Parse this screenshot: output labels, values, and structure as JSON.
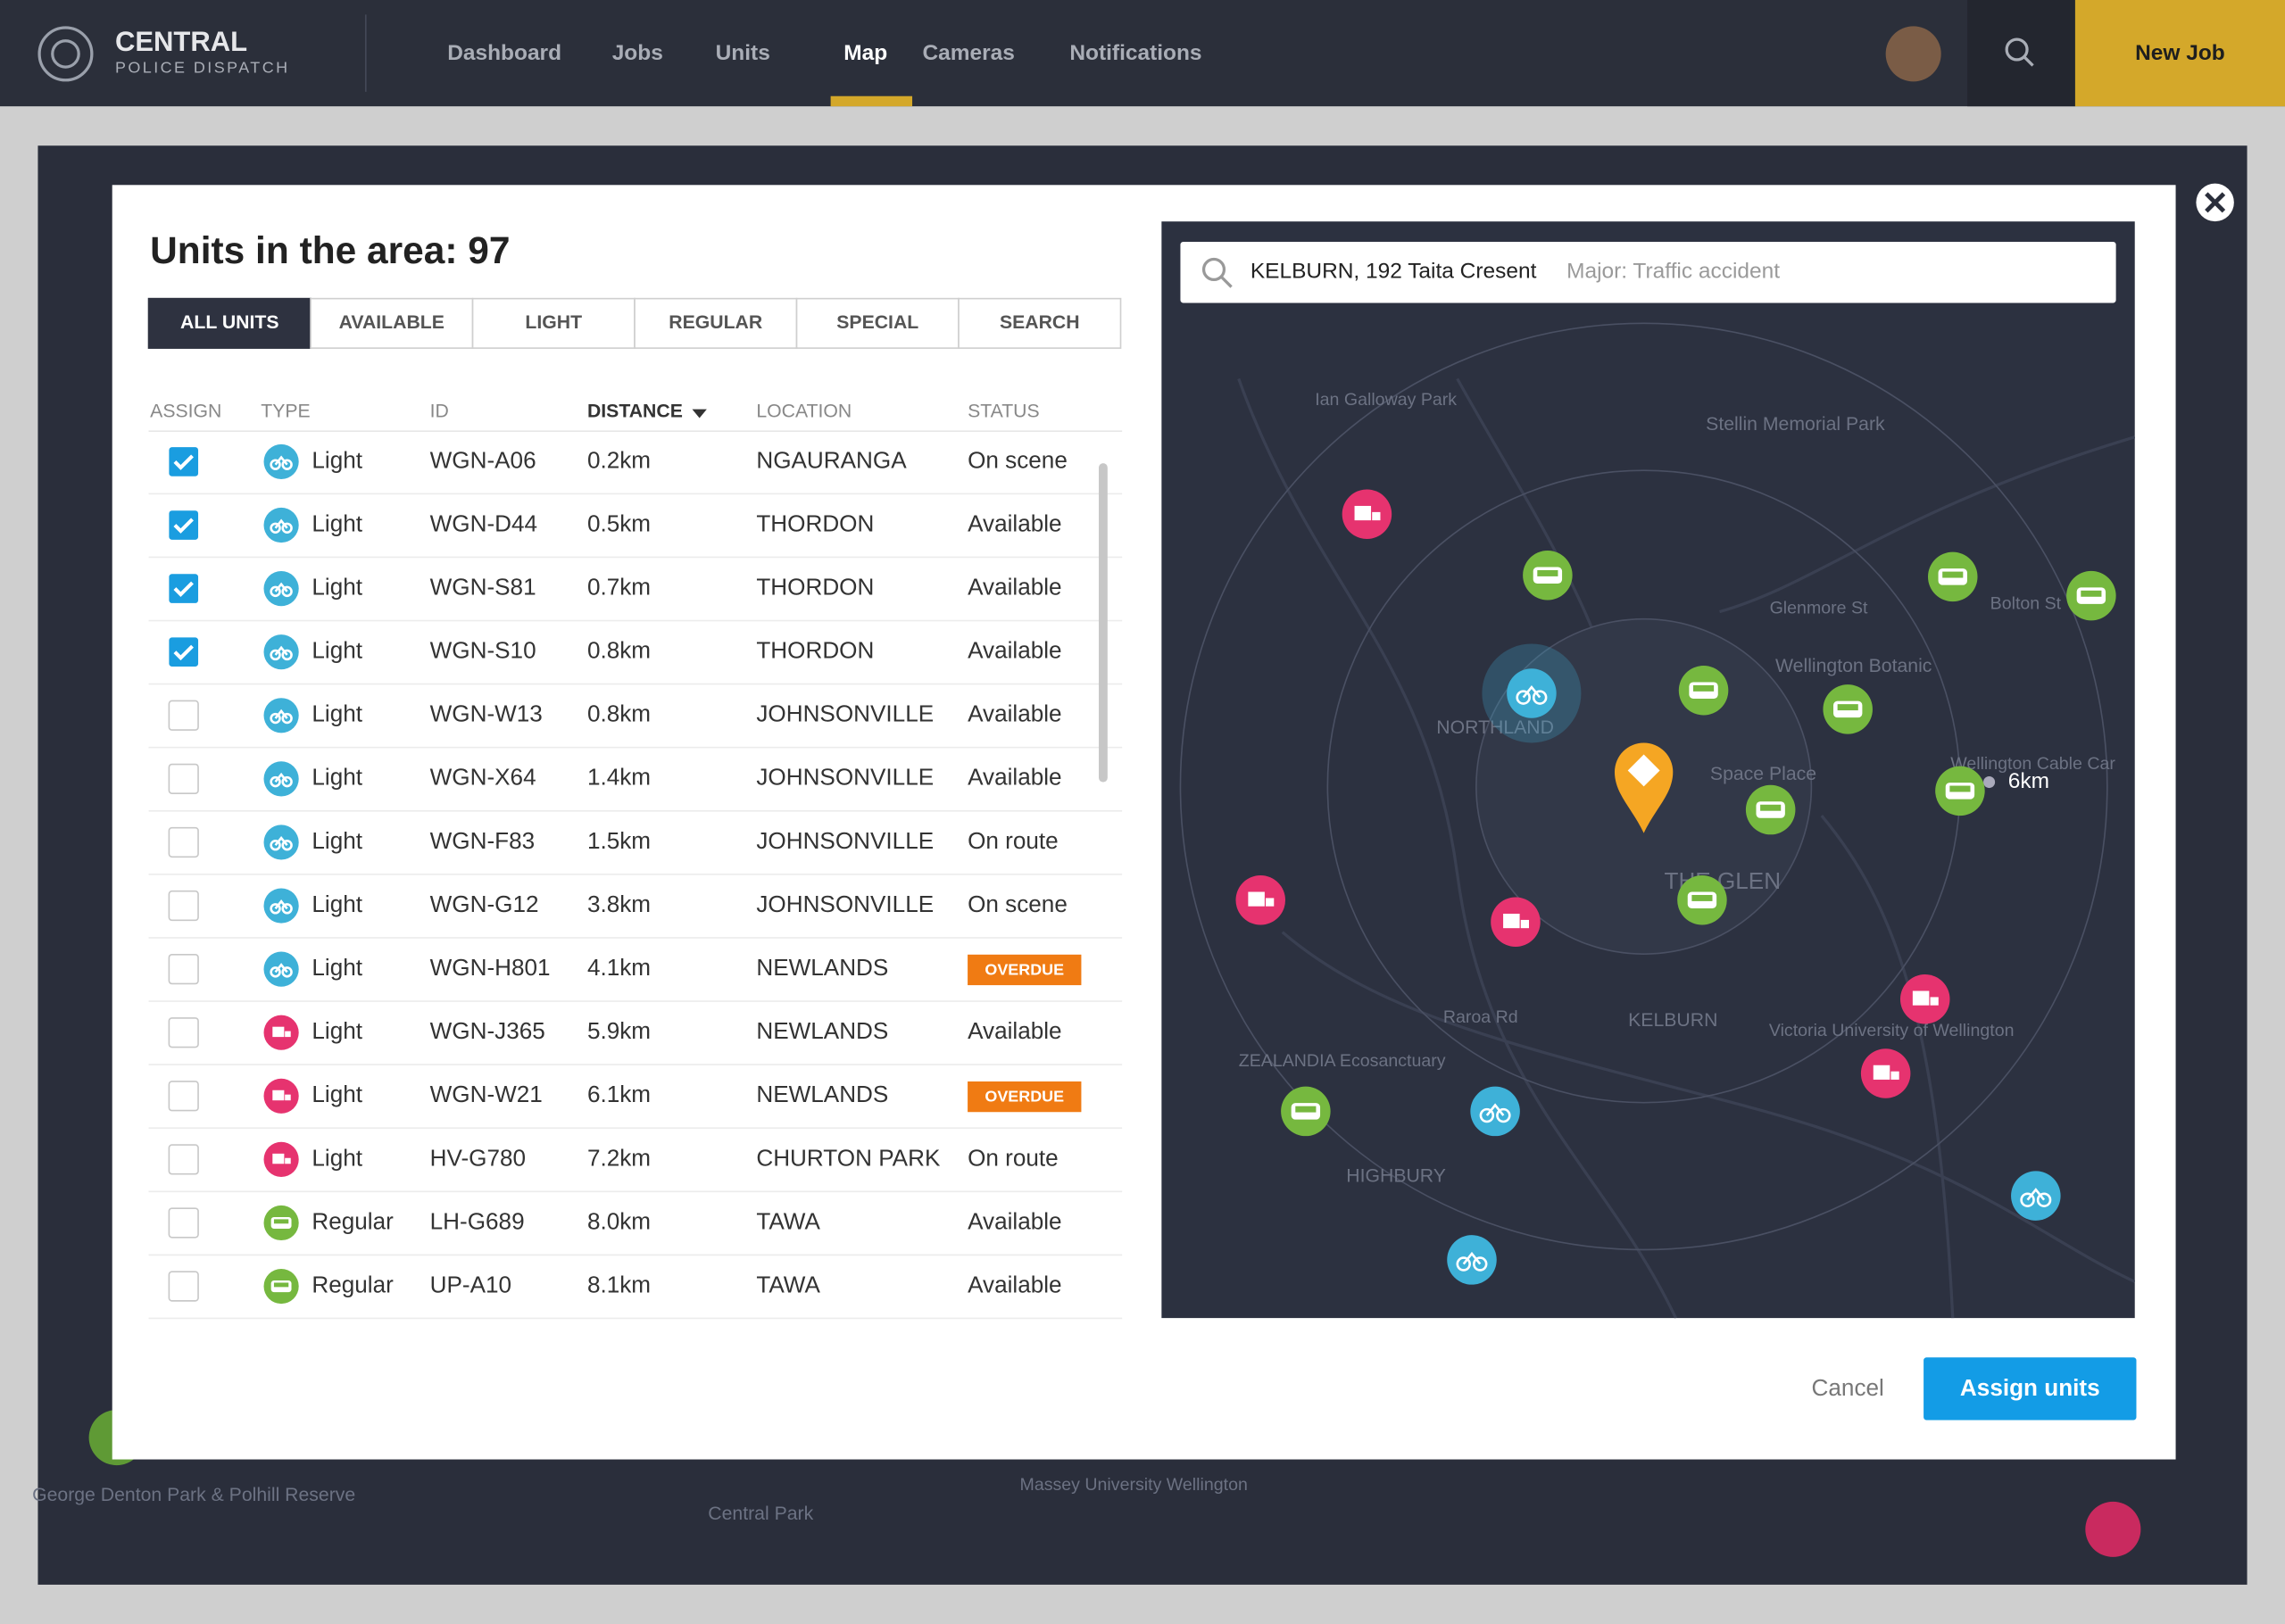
{
  "header": {
    "brand": "CENTRAL",
    "subtitle": "POLICE DISPATCH",
    "nav": [
      "Dashboard",
      "Jobs",
      "Units",
      "Map",
      "Cameras",
      "Notifications"
    ],
    "active_nav": 3,
    "new_job": "New Job"
  },
  "modal": {
    "title": "Units in the area: 97",
    "tabs": [
      "ALL UNITS",
      "AVAILABLE",
      "LIGHT",
      "REGULAR",
      "SPECIAL",
      "SEARCH"
    ],
    "active_tab": 0,
    "columns": [
      "ASSIGN",
      "TYPE",
      "ID",
      "DISTANCE",
      "LOCATION",
      "STATUS"
    ],
    "sorted_column": 3,
    "rows": [
      {
        "assigned": true,
        "type": "Light",
        "color": "#3eb1d8",
        "id": "WGN-A06",
        "distance": "0.2km",
        "location": "NGAURANGA",
        "status": "On scene",
        "badge": false
      },
      {
        "assigned": true,
        "type": "Light",
        "color": "#3eb1d8",
        "id": "WGN-D44",
        "distance": "0.5km",
        "location": "THORDON",
        "status": "Available",
        "badge": false
      },
      {
        "assigned": true,
        "type": "Light",
        "color": "#3eb1d8",
        "id": "WGN-S81",
        "distance": "0.7km",
        "location": "THORDON",
        "status": "Available",
        "badge": false
      },
      {
        "assigned": true,
        "type": "Light",
        "color": "#3eb1d8",
        "id": "WGN-S10",
        "distance": "0.8km",
        "location": "THORDON",
        "status": "Available",
        "badge": false
      },
      {
        "assigned": false,
        "type": "Light",
        "color": "#3eb1d8",
        "id": "WGN-W13",
        "distance": "0.8km",
        "location": "JOHNSONVILLE",
        "status": "Available",
        "badge": false
      },
      {
        "assigned": false,
        "type": "Light",
        "color": "#3eb1d8",
        "id": "WGN-X64",
        "distance": "1.4km",
        "location": "JOHNSONVILLE",
        "status": "Available",
        "badge": false
      },
      {
        "assigned": false,
        "type": "Light",
        "color": "#3eb1d8",
        "id": "WGN-F83",
        "distance": "1.5km",
        "location": "JOHNSONVILLE",
        "status": "On route",
        "badge": false
      },
      {
        "assigned": false,
        "type": "Light",
        "color": "#3eb1d8",
        "id": "WGN-G12",
        "distance": "3.8km",
        "location": "JOHNSONVILLE",
        "status": "On scene",
        "badge": false
      },
      {
        "assigned": false,
        "type": "Light",
        "color": "#3eb1d8",
        "id": "WGN-H801",
        "distance": "4.1km",
        "location": "NEWLANDS",
        "status": "OVERDUE",
        "badge": true
      },
      {
        "assigned": false,
        "type": "Light",
        "color": "#e6336f",
        "id": "WGN-J365",
        "distance": "5.9km",
        "location": "NEWLANDS",
        "status": "Available",
        "badge": false
      },
      {
        "assigned": false,
        "type": "Light",
        "color": "#e6336f",
        "id": "WGN-W21",
        "distance": "6.1km",
        "location": "NEWLANDS",
        "status": "OVERDUE",
        "badge": true
      },
      {
        "assigned": false,
        "type": "Light",
        "color": "#e6336f",
        "id": "HV-G780",
        "distance": "7.2km",
        "location": "CHURTON PARK",
        "status": "On route",
        "badge": false
      },
      {
        "assigned": false,
        "type": "Regular",
        "color": "#76b83f",
        "id": "LH-G689",
        "distance": "8.0km",
        "location": "TAWA",
        "status": "Available",
        "badge": false
      },
      {
        "assigned": false,
        "type": "Regular",
        "color": "#76b83f",
        "id": "UP-A10",
        "distance": "8.1km",
        "location": "TAWA",
        "status": "Available",
        "badge": false
      }
    ],
    "search": {
      "address": "KELBURN, 192 Taita Cresent",
      "hint": "Major: Traffic accident"
    },
    "radius_label": "6km",
    "cancel": "Cancel",
    "assign": "Assign units"
  },
  "map": {
    "labels": [
      "Ian Galloway Park",
      "Stellin Memorial Park",
      "NORTHLAND",
      "Wellington Botanic",
      "Space Place",
      "Wellington Cable Car",
      "THE GLEN",
      "KELBURN",
      "ZEALANDIA Ecosanctuary",
      "HIGHBURY",
      "Victoria University of Wellington",
      "Glenmore St",
      "Bolton St",
      "Raroa Rd",
      "George Denton Park & Polhill Reserve",
      "Central Park",
      "Massey University Wellington"
    ]
  }
}
